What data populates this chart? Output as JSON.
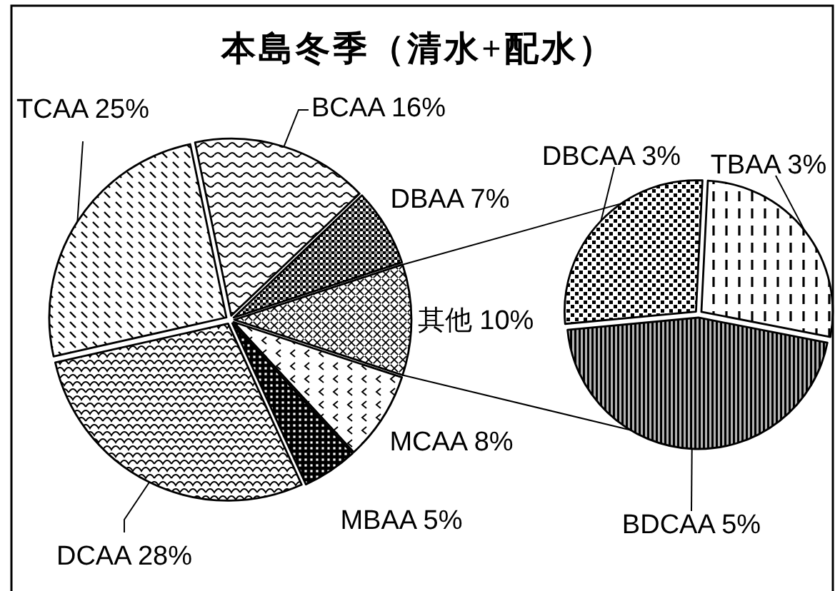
{
  "chart_data": [
    {
      "type": "pie",
      "title": "本島冬季（清水+配水）",
      "categories": [
        "BCAA",
        "DBAA",
        "其他",
        "MCAA",
        "MBAA",
        "DCAA",
        "TCAA"
      ],
      "values": [
        16,
        7,
        10,
        8,
        5,
        28,
        25
      ],
      "value_labels": [
        "16%",
        "7%",
        "10%",
        "8%",
        "5%",
        "28%",
        "25%"
      ],
      "colors": [
        "#000000",
        "#000000",
        "#000000",
        "#000000",
        "#000000",
        "#000000",
        "#000000"
      ]
    },
    {
      "type": "pie",
      "categories": [
        "TBAA",
        "DBCAA",
        "BDCAA"
      ],
      "values": [
        3,
        3,
        5
      ],
      "value_labels": [
        "3%",
        "3%",
        "5%"
      ],
      "colors": [
        "#000000",
        "#000000",
        "#000000"
      ]
    }
  ]
}
